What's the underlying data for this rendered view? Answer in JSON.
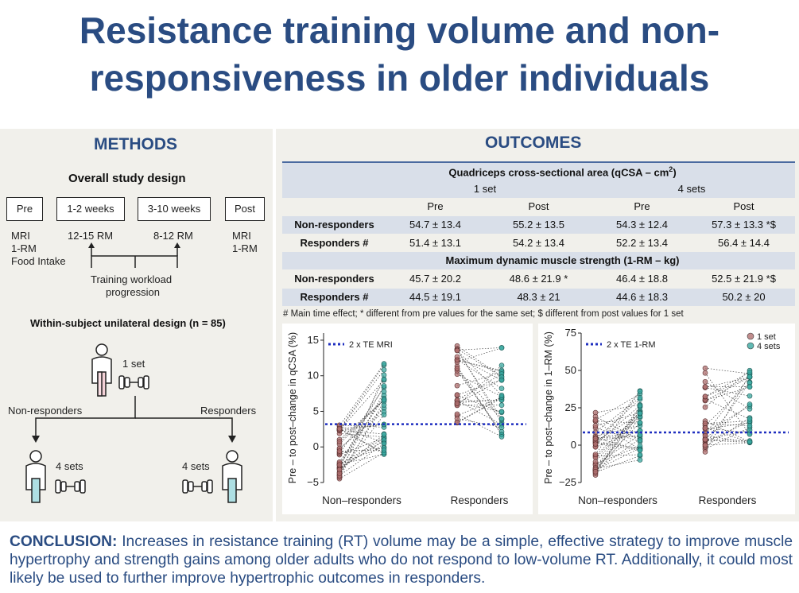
{
  "title": "Resistance training volume and non-responsiveness in older individuals",
  "methods": {
    "heading": "METHODS",
    "design_heading": "Overall study design",
    "timeline": [
      "Pre",
      "1-2 weeks",
      "3-10 weeks",
      "Post"
    ],
    "pre_measures": [
      "MRI",
      "1-RM",
      "Food Intake"
    ],
    "rm_early": "12-15 RM",
    "rm_late": "8-12 RM",
    "post_measures": [
      "MRI",
      "1-RM"
    ],
    "progression_label": [
      "Training workload",
      "progression"
    ],
    "unilateral_heading": "Within-subject unilateral design (n = 85)",
    "one_set": "1 set",
    "non_responders": "Non-responders",
    "responders": "Responders",
    "four_sets_left": "4 sets",
    "four_sets_right": "4 sets"
  },
  "outcomes": {
    "heading": "OUTCOMES",
    "table": {
      "qcsa_heading": "Quadriceps cross-sectional area (qCSA – cm",
      "qcsa_sup": "2",
      "qcsa_close": ")",
      "group_headers": [
        "1 set",
        "4 sets"
      ],
      "time_headers": [
        "Pre",
        "Post",
        "Pre",
        "Post"
      ],
      "qcsa_rows": [
        {
          "label": "Non-responders",
          "values": [
            "54.7 ± 13.4",
            "55.2 ± 13.5",
            "54.3 ± 12.4",
            "57.3 ± 13.3 *$"
          ]
        },
        {
          "label": "Responders #",
          "values": [
            "51.4 ± 13.1",
            "54.2 ± 13.4",
            "52.2 ± 13.4",
            "56.4 ± 14.4"
          ]
        }
      ],
      "rm_heading": "Maximum dynamic muscle strength (1-RM – kg)",
      "rm_rows": [
        {
          "label": "Non-responders",
          "values": [
            "45.7 ± 20.2",
            "48.6 ± 21.9 *",
            "46.4 ± 18.8",
            "52.5 ± 21.9 *$"
          ]
        },
        {
          "label": "Responders #",
          "values": [
            "44.5 ± 19.1",
            "48.3 ± 21",
            "44.6 ± 18.3",
            "50.2 ± 20"
          ]
        }
      ],
      "footnote": "# Main time effect; * different from pre values for the same set; $ different from post values for 1 set"
    }
  },
  "chart_data": [
    {
      "type": "scatter",
      "title": "",
      "ylabel": "Pre – to post–change in qCSA (%)",
      "categories": [
        "Non–responders",
        "Responders"
      ],
      "ylim": [
        -5,
        16
      ],
      "yticks": [
        "15",
        "10",
        "5",
        "0",
        "−5"
      ],
      "reference_line": {
        "label": "2 x TE MRI",
        "value": 3.2
      },
      "series": [
        {
          "name": "1 set",
          "color": "#b07070"
        },
        {
          "name": "4 sets",
          "color": "#3aa8a0"
        }
      ],
      "ranges": {
        "nr_1set": [
          -4.5,
          3.1
        ],
        "nr_4sets": [
          -1.5,
          12.4
        ],
        "r_1set": [
          3.3,
          15.2
        ],
        "r_4sets": [
          1.1,
          14.2
        ]
      }
    },
    {
      "type": "scatter",
      "title": "",
      "ylabel": "Pre – to post–change in 1–RM (%)",
      "categories": [
        "Non–responders",
        "Responders"
      ],
      "ylim": [
        -25,
        75
      ],
      "yticks": [
        "75",
        "50",
        "25",
        "0",
        "−25"
      ],
      "reference_line": {
        "label": "2 x TE 1-RM",
        "value": 8.5
      },
      "series": [
        {
          "name": "1 set",
          "color": "#b07070"
        },
        {
          "name": "4 sets",
          "color": "#3aa8a0"
        }
      ],
      "legend": [
        "1 set",
        "4 sets"
      ],
      "ranges": {
        "nr_1set": [
          -20,
          27
        ],
        "nr_4sets": [
          -14,
          37
        ],
        "r_1set": [
          -5,
          54
        ],
        "r_4sets": [
          -1,
          50
        ]
      }
    }
  ],
  "conclusion": {
    "label": "CONCLUSION:",
    "text": " Increases in resistance training (RT) volume may be a simple, effective strategy to improve muscle hypertrophy and strength gains among older adults who do not respond to low-volume RT. Additionally, it could most likely be used to further improve hypertrophic outcomes in responders."
  },
  "colors": {
    "accent": "#2a4c82",
    "panel": "#f1f0eb",
    "table_shade": "#d9dfe9",
    "ref_line": "#1f2fc0"
  }
}
